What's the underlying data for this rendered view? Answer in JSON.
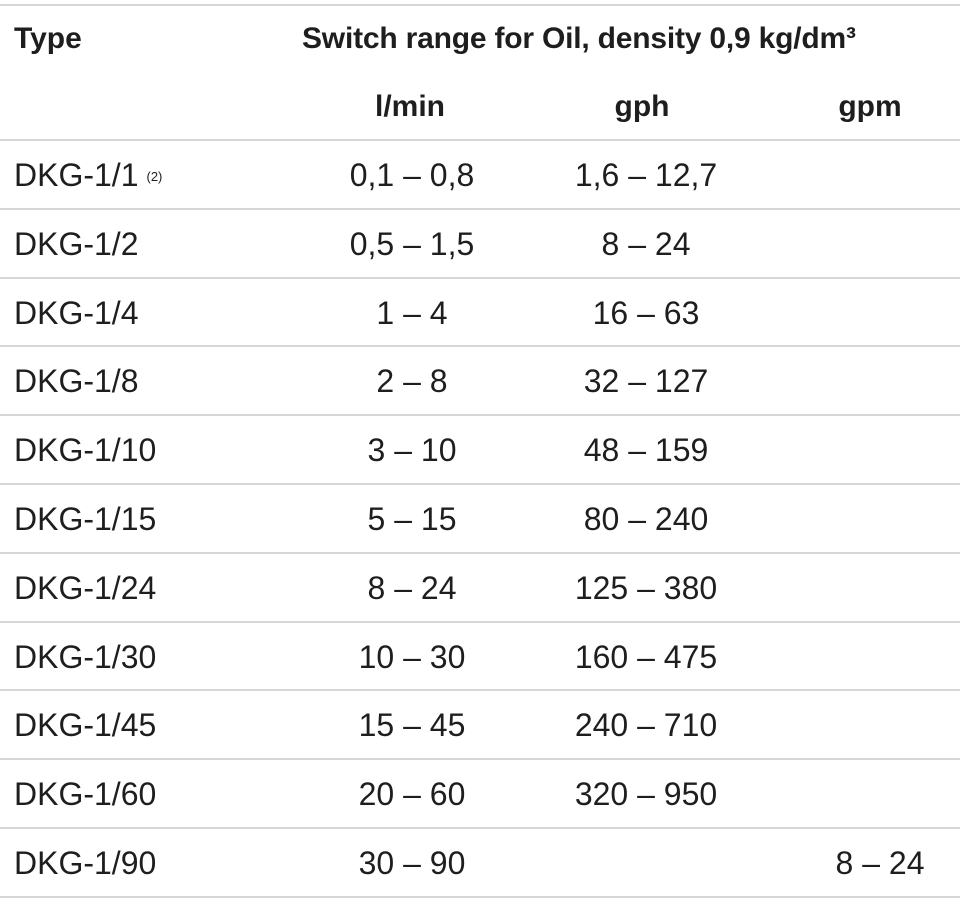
{
  "header": {
    "type_label": "Type",
    "switch_label": "Switch range for Oil, density 0,9 kg/dm³",
    "units": [
      "l/min",
      "gph",
      "gpm"
    ]
  },
  "rows": [
    {
      "type": "DKG-1/1",
      "footnote": "(2)",
      "lmin": "0,1 – 0,8",
      "gph": "1,6 – 12,7",
      "gpm": ""
    },
    {
      "type": "DKG-1/2",
      "footnote": "",
      "lmin": "0,5 – 1,5",
      "gph": "8 – 24",
      "gpm": ""
    },
    {
      "type": "DKG-1/4",
      "footnote": "",
      "lmin": "1 – 4",
      "gph": "16 – 63",
      "gpm": ""
    },
    {
      "type": "DKG-1/8",
      "footnote": "",
      "lmin": "2 – 8",
      "gph": "32 – 127",
      "gpm": ""
    },
    {
      "type": "DKG-1/10",
      "footnote": "",
      "lmin": "3 – 10",
      "gph": "48 – 159",
      "gpm": ""
    },
    {
      "type": "DKG-1/15",
      "footnote": "",
      "lmin": "5 – 15",
      "gph": "80 – 240",
      "gpm": ""
    },
    {
      "type": "DKG-1/24",
      "footnote": "",
      "lmin": "8 – 24",
      "gph": "125 – 380",
      "gpm": ""
    },
    {
      "type": "DKG-1/30",
      "footnote": "",
      "lmin": "10 – 30",
      "gph": "160 – 475",
      "gpm": ""
    },
    {
      "type": "DKG-1/45",
      "footnote": "",
      "lmin": "15 – 45",
      "gph": "240 – 710",
      "gpm": ""
    },
    {
      "type": "DKG-1/60",
      "footnote": "",
      "lmin": "20 – 60",
      "gph": "320 – 950",
      "gpm": ""
    },
    {
      "type": "DKG-1/90",
      "footnote": "",
      "lmin": "30 – 90",
      "gph": "",
      "gpm": "8 – 24"
    }
  ]
}
